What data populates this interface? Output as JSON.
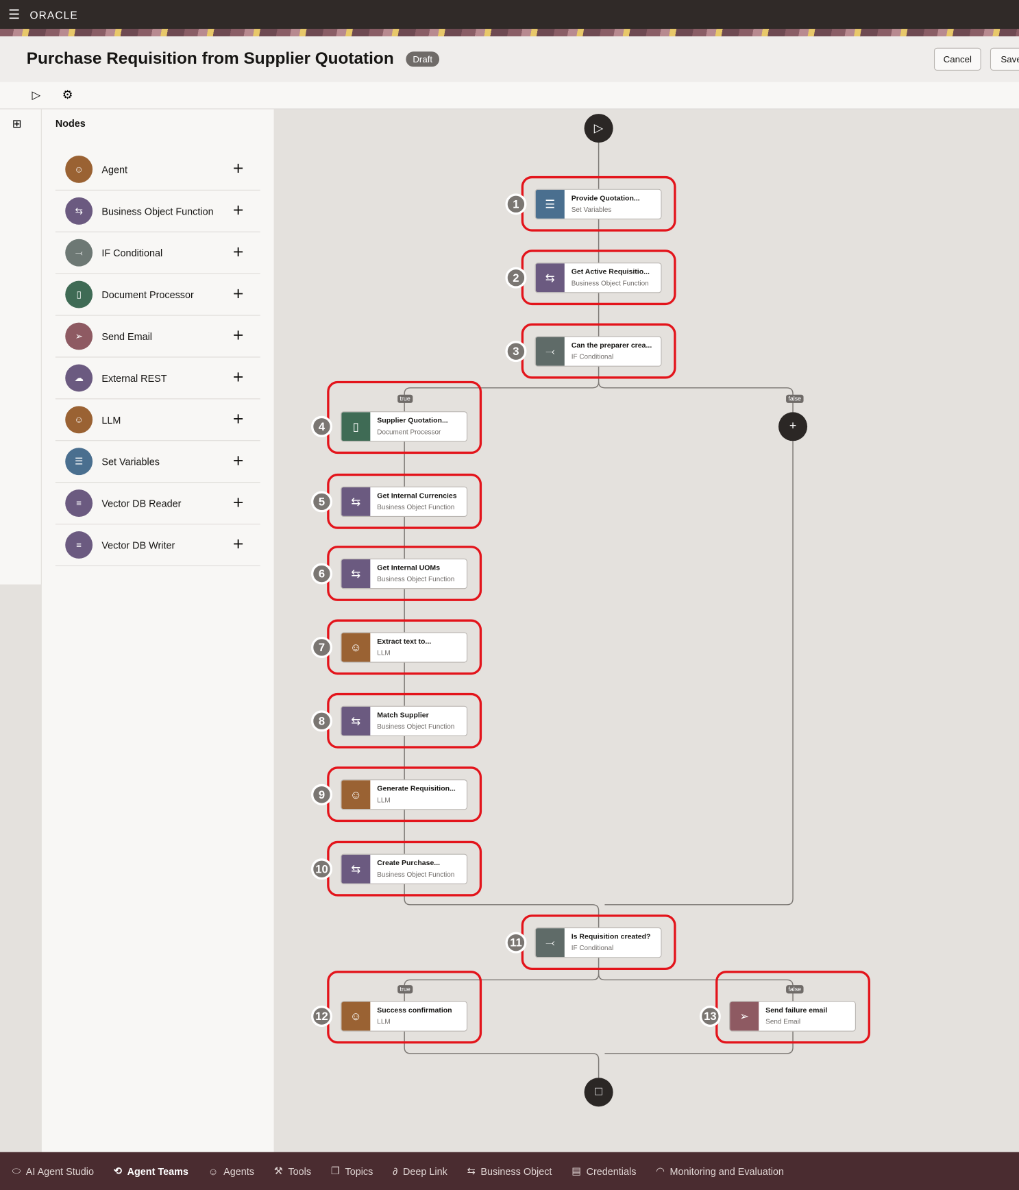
{
  "app": {
    "brand": "ORACLE",
    "menu_icon": "hamburger-icon"
  },
  "header": {
    "title": "Purchase Requisition from Supplier Quotation",
    "status": "Draft",
    "cancel_label": "Cancel",
    "save_label": "Save"
  },
  "toolbar": {
    "run_icon": "play-icon",
    "settings_icon": "gear-icon"
  },
  "panel": {
    "title": "Nodes",
    "items": [
      {
        "label": "Agent",
        "icon": "agent-icon",
        "color": "#9a6233"
      },
      {
        "label": "Business Object Function",
        "icon": "business-object-icon",
        "color": "#6b5a80"
      },
      {
        "label": "IF Conditional",
        "icon": "conditional-icon",
        "color": "#6d7874"
      },
      {
        "label": "Document Processor",
        "icon": "document-processor-icon",
        "color": "#3f6b55"
      },
      {
        "label": "Send Email",
        "icon": "send-icon",
        "color": "#8e5a62"
      },
      {
        "label": "External REST",
        "icon": "rest-icon",
        "color": "#6b5a80"
      },
      {
        "label": "LLM",
        "icon": "llm-icon",
        "color": "#9a6233"
      },
      {
        "label": "Set Variables",
        "icon": "set-variables-icon",
        "color": "#4a6f8f"
      },
      {
        "label": "Vector DB Reader",
        "icon": "database-icon",
        "color": "#6b5a80"
      },
      {
        "label": "Vector DB Writer",
        "icon": "database-icon",
        "color": "#6b5a80"
      }
    ]
  },
  "flow": {
    "branch_true": "true",
    "branch_false": "false",
    "nodes": [
      {
        "num": "1",
        "title": "Provide Quotation...",
        "type": "Set Variables",
        "color": "#4a6f8f"
      },
      {
        "num": "2",
        "title": "Get Active Requisitio...",
        "type": "Business Object Function",
        "color": "#6b5a80"
      },
      {
        "num": "3",
        "title": "Can the preparer crea...",
        "type": "IF Conditional",
        "color": "#5f6b68"
      },
      {
        "num": "4",
        "title": "Supplier Quotation...",
        "type": "Document Processor",
        "color": "#3f6b55"
      },
      {
        "num": "5",
        "title": "Get Internal Currencies",
        "type": "Business Object Function",
        "color": "#6b5a80"
      },
      {
        "num": "6",
        "title": "Get Internal UOMs",
        "type": "Business Object Function",
        "color": "#6b5a80"
      },
      {
        "num": "7",
        "title": "Extract text to...",
        "type": "LLM",
        "color": "#9a6233"
      },
      {
        "num": "8",
        "title": "Match Supplier",
        "type": "Business Object Function",
        "color": "#6b5a80"
      },
      {
        "num": "9",
        "title": "Generate Requisition...",
        "type": "LLM",
        "color": "#9a6233"
      },
      {
        "num": "10",
        "title": "Create Purchase...",
        "type": "Business Object Function",
        "color": "#6b5a80"
      },
      {
        "num": "11",
        "title": "Is Requisition created?",
        "type": "IF Conditional",
        "color": "#5f6b68"
      },
      {
        "num": "12",
        "title": "Success confirmation",
        "type": "LLM",
        "color": "#9a6233"
      },
      {
        "num": "13",
        "title": "Send failure email",
        "type": "Send Email",
        "color": "#8e5a62"
      }
    ]
  },
  "bottom_nav": [
    {
      "label": "AI Agent Studio",
      "icon": "studio-icon",
      "active": false
    },
    {
      "label": "Agent Teams",
      "icon": "agent-teams-icon",
      "active": true
    },
    {
      "label": "Agents",
      "icon": "agents-icon",
      "active": false
    },
    {
      "label": "Tools",
      "icon": "tools-icon",
      "active": false
    },
    {
      "label": "Topics",
      "icon": "topics-icon",
      "active": false
    },
    {
      "label": "Deep Link",
      "icon": "link-icon",
      "active": false
    },
    {
      "label": "Business Object",
      "icon": "business-object-icon",
      "active": false
    },
    {
      "label": "Credentials",
      "icon": "credentials-icon",
      "active": false
    },
    {
      "label": "Monitoring and Evaluation",
      "icon": "monitoring-icon",
      "active": false
    }
  ]
}
